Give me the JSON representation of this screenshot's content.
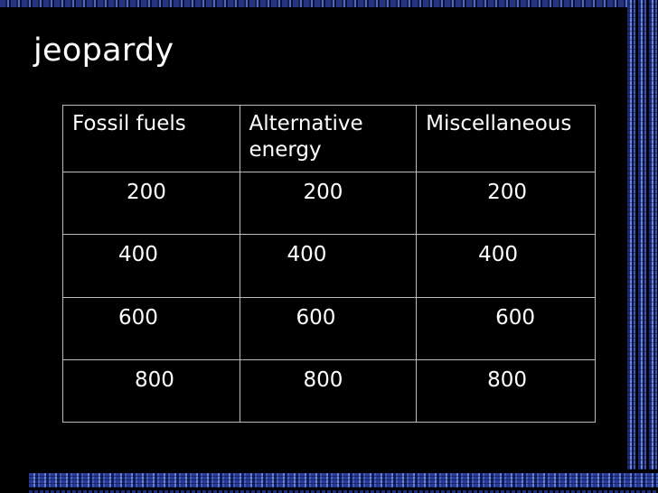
{
  "title": "jeopardy",
  "board": {
    "categories": [
      "Fossil fuels",
      "Alternative energy",
      "Miscellaneous"
    ],
    "rows": [
      [
        "200",
        "200",
        "200"
      ],
      [
        "400",
        "400",
        "400"
      ],
      [
        "600",
        "600",
        "600"
      ],
      [
        "800",
        "800",
        "800"
      ]
    ]
  },
  "colors": {
    "background": "#000000",
    "text": "#ffffff",
    "border": "#bdbdbd",
    "accent": "#3d55b0"
  }
}
